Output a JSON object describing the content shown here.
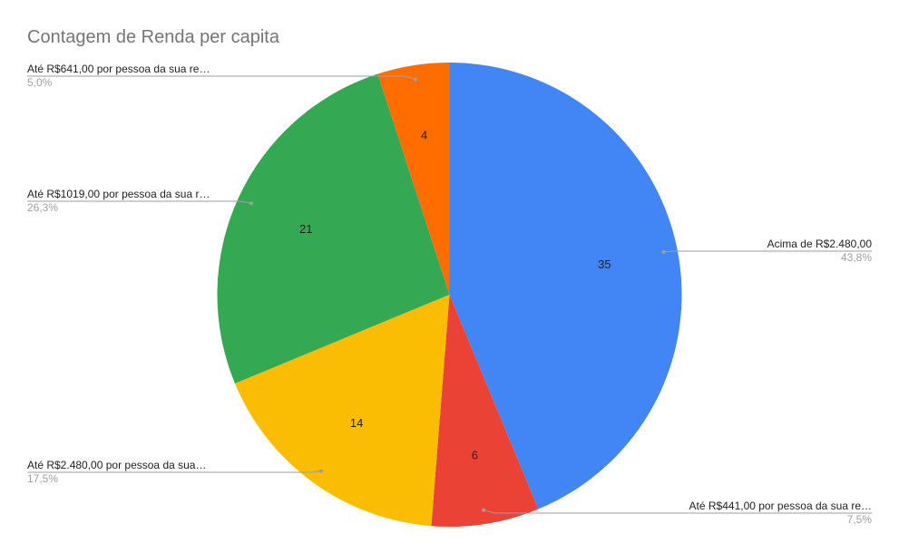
{
  "chart_data": {
    "type": "pie",
    "title": "Contagem de Renda per capita",
    "slices": [
      {
        "label": "Acima de R$2.480,00",
        "value": 35,
        "percent_label": "43,8%",
        "color": "#4285f4"
      },
      {
        "label": "Até R$441,00 por pessoa da sua re…",
        "value": 6,
        "percent_label": "7,5%",
        "color": "#ea4335"
      },
      {
        "label": "Até R$2.480,00 por pessoa da sua…",
        "value": 14,
        "percent_label": "17,5%",
        "color": "#fbbc04"
      },
      {
        "label": "Até R$1019,00 por pessoa da sua r…",
        "value": 21,
        "percent_label": "26,3%",
        "color": "#34a853"
      },
      {
        "label": "Até R$641,00 por pessoa da sua re…",
        "value": 4,
        "percent_label": "5,0%",
        "color": "#ff6d01"
      }
    ],
    "start_angle": "12 o'clock",
    "direction": "clockwise",
    "legend": "labeled leader lines"
  }
}
